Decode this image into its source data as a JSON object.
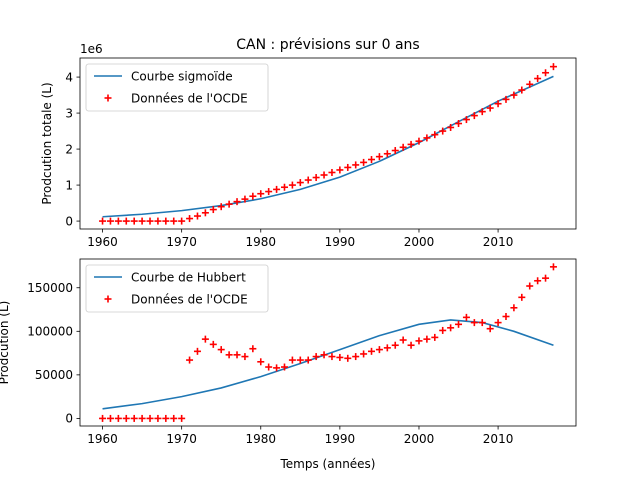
{
  "chart_data": [
    {
      "type": "line+scatter",
      "title": "CAN : prévisions sur 0 ans",
      "xlabel": "",
      "ylabel": "Prodcution totale (L)",
      "scale_label": "1e6",
      "xlim": [
        1957.15,
        2019.85
      ],
      "ylim": [
        -0.22,
        4.53
      ],
      "xticks": [
        1960,
        1970,
        1980,
        1990,
        2000,
        2010
      ],
      "yticks": [
        0,
        1,
        2,
        3,
        4
      ],
      "legend_position": "upper-left",
      "series": [
        {
          "name": "Courbe sigmoïde",
          "kind": "line",
          "color": "#1f77b4",
          "x": [
            1960,
            1965,
            1970,
            1975,
            1980,
            1985,
            1990,
            1995,
            2000,
            2005,
            2010,
            2017
          ],
          "y": [
            0.12,
            0.19,
            0.29,
            0.43,
            0.62,
            0.88,
            1.22,
            1.66,
            2.18,
            2.76,
            3.33,
            4.02
          ]
        },
        {
          "name": "Données de l'OCDE",
          "kind": "scatter",
          "marker": "+",
          "color": "#ff0000",
          "x": [
            1960,
            1961,
            1962,
            1963,
            1964,
            1965,
            1966,
            1967,
            1968,
            1969,
            1970,
            1971,
            1972,
            1973,
            1974,
            1975,
            1976,
            1977,
            1978,
            1979,
            1980,
            1981,
            1982,
            1983,
            1984,
            1985,
            1986,
            1987,
            1988,
            1989,
            1990,
            1991,
            1992,
            1993,
            1994,
            1995,
            1996,
            1997,
            1998,
            1999,
            2000,
            2001,
            2002,
            2003,
            2004,
            2005,
            2006,
            2007,
            2008,
            2009,
            2010,
            2011,
            2012,
            2013,
            2014,
            2015,
            2016,
            2017
          ],
          "y": [
            0,
            0,
            0,
            0,
            0,
            0,
            0,
            0,
            0,
            0,
            0,
            0.07,
            0.14,
            0.23,
            0.32,
            0.4,
            0.47,
            0.54,
            0.61,
            0.69,
            0.76,
            0.82,
            0.88,
            0.94,
            1.0,
            1.07,
            1.14,
            1.21,
            1.28,
            1.35,
            1.42,
            1.49,
            1.56,
            1.63,
            1.71,
            1.79,
            1.87,
            1.96,
            2.05,
            2.13,
            2.22,
            2.31,
            2.4,
            2.5,
            2.6,
            2.71,
            2.82,
            2.93,
            3.04,
            3.14,
            3.26,
            3.38,
            3.5,
            3.64,
            3.8,
            3.96,
            4.12,
            4.29
          ]
        }
      ]
    },
    {
      "type": "line+scatter",
      "title": "",
      "xlabel": "Temps (années)",
      "ylabel": "Prodcution (L)",
      "xlim": [
        1957.15,
        2019.85
      ],
      "ylim": [
        -8700,
        183000
      ],
      "xticks": [
        1960,
        1970,
        1980,
        1990,
        2000,
        2010
      ],
      "yticks": [
        0,
        50000,
        100000,
        150000
      ],
      "legend_position": "upper-left",
      "series": [
        {
          "name": "Courbe de Hubbert",
          "kind": "line",
          "color": "#1f77b4",
          "x": [
            1960,
            1965,
            1970,
            1975,
            1980,
            1985,
            1990,
            1995,
            2000,
            2004,
            2008,
            2012,
            2017
          ],
          "y": [
            11000,
            17000,
            25000,
            35000,
            48000,
            63000,
            79000,
            95000,
            108000,
            113000,
            110000,
            100000,
            84000
          ]
        },
        {
          "name": "Données de l'OCDE",
          "kind": "scatter",
          "marker": "+",
          "color": "#ff0000",
          "x": [
            1960,
            1961,
            1962,
            1963,
            1964,
            1965,
            1966,
            1967,
            1968,
            1969,
            1970,
            1971,
            1972,
            1973,
            1974,
            1975,
            1976,
            1977,
            1978,
            1979,
            1980,
            1981,
            1982,
            1983,
            1984,
            1985,
            1986,
            1987,
            1988,
            1989,
            1990,
            1991,
            1992,
            1993,
            1994,
            1995,
            1996,
            1997,
            1998,
            1999,
            2000,
            2001,
            2002,
            2003,
            2004,
            2005,
            2006,
            2007,
            2008,
            2009,
            2010,
            2011,
            2012,
            2013,
            2014,
            2015,
            2016,
            2017
          ],
          "y": [
            0,
            0,
            0,
            0,
            0,
            0,
            0,
            0,
            0,
            0,
            0,
            67000,
            77000,
            91000,
            85000,
            79000,
            73000,
            73000,
            71000,
            80000,
            65000,
            59000,
            58000,
            59000,
            67000,
            67000,
            67000,
            71000,
            73000,
            71000,
            70000,
            69000,
            71000,
            74000,
            77000,
            79000,
            81000,
            84000,
            90000,
            84000,
            89000,
            91000,
            93000,
            101000,
            104000,
            108000,
            116000,
            110000,
            110000,
            103000,
            110000,
            117000,
            127000,
            139000,
            152000,
            158000,
            161000,
            174000
          ]
        }
      ]
    }
  ]
}
